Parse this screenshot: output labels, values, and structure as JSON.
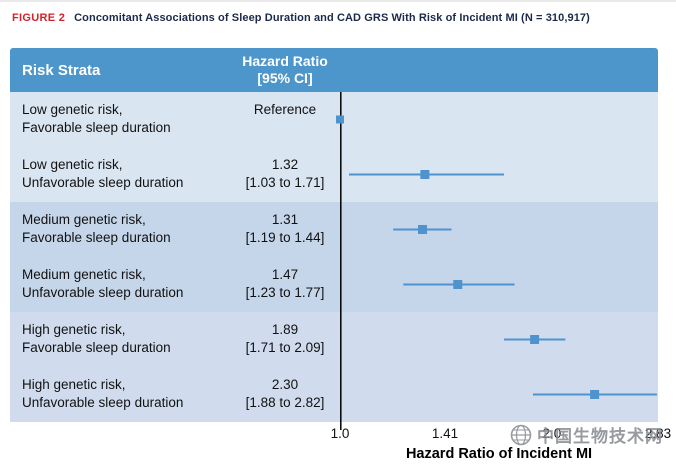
{
  "header": {
    "figure_label": "FIGURE 2",
    "title": "Concomitant Associations of Sleep Duration and CAD GRS With Risk of Incident MI (N = 310,917)"
  },
  "table": {
    "col1_header": "Risk Strata",
    "col2_header_line1": "Hazard Ratio",
    "col2_header_line2": "[95% CI]"
  },
  "chart_data": {
    "type": "forest",
    "x_scale": "log",
    "xlabel": "Hazard Ratio of Incident MI",
    "xlim": [
      1.0,
      2.83
    ],
    "x_ticks": [
      "1.0",
      "1.41",
      "2.0",
      "2.83"
    ],
    "x_tick_values": [
      1.0,
      1.41,
      2.0,
      2.83
    ],
    "rows": [
      {
        "label_line1": "Low genetic risk,",
        "label_line2": "Favorable sleep duration",
        "hr_line1": "Reference",
        "hr_line2": "",
        "hr": 1.0,
        "ci_low": null,
        "ci_high": null,
        "group": "low"
      },
      {
        "label_line1": "Low genetic risk,",
        "label_line2": "Unfavorable sleep duration",
        "hr_line1": "1.32",
        "hr_line2": "[1.03 to 1.71]",
        "hr": 1.32,
        "ci_low": 1.03,
        "ci_high": 1.71,
        "group": "low"
      },
      {
        "label_line1": "Medium genetic risk,",
        "label_line2": "Favorable sleep duration",
        "hr_line1": "1.31",
        "hr_line2": "[1.19 to 1.44]",
        "hr": 1.31,
        "ci_low": 1.19,
        "ci_high": 1.44,
        "group": "medium"
      },
      {
        "label_line1": "Medium genetic risk,",
        "label_line2": "Unfavorable sleep duration",
        "hr_line1": "1.47",
        "hr_line2": "[1.23 to 1.77]",
        "hr": 1.47,
        "ci_low": 1.23,
        "ci_high": 1.77,
        "group": "medium"
      },
      {
        "label_line1": "High genetic risk,",
        "label_line2": "Favorable sleep duration",
        "hr_line1": "1.89",
        "hr_line2": "[1.71 to 2.09]",
        "hr": 1.89,
        "ci_low": 1.71,
        "ci_high": 2.09,
        "group": "high"
      },
      {
        "label_line1": "High genetic risk,",
        "label_line2": "Unfavorable sleep duration",
        "hr_line1": "2.30",
        "hr_line2": "[1.88 to 2.82]",
        "hr": 2.3,
        "ci_low": 1.88,
        "ci_high": 2.82,
        "group": "high"
      }
    ]
  },
  "watermark": {
    "text": "中国生物技术网"
  },
  "colors": {
    "figure_label_red": "#d2232a",
    "header_bg": "#4d96cb",
    "row_low": "#dae5f2",
    "row_medium": "#c6d6ea",
    "row_high": "#d0dcee",
    "marker": "#4e93cd",
    "axis_line": "#000000"
  }
}
